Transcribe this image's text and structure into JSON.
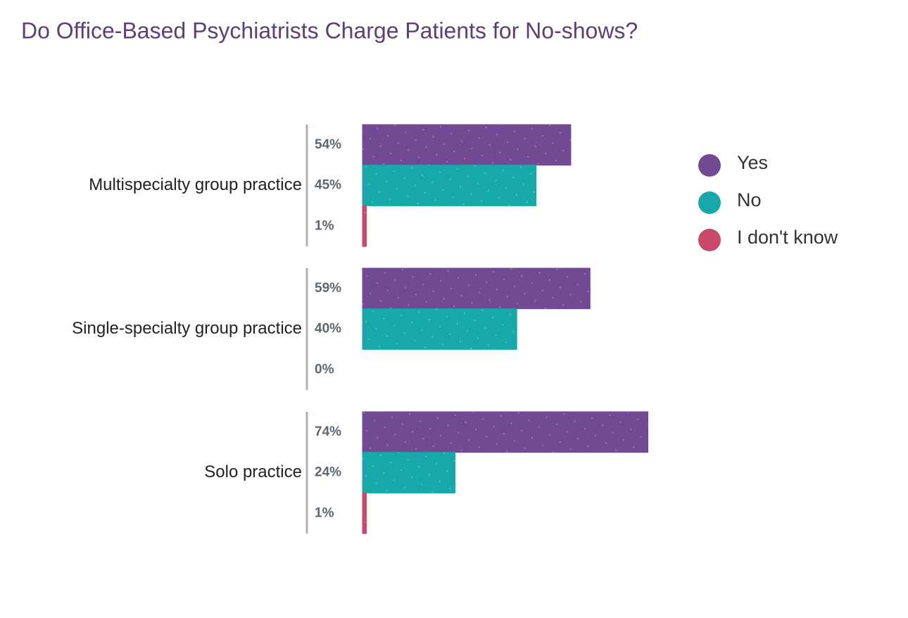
{
  "chart_data": {
    "type": "bar",
    "orientation": "horizontal",
    "title": "Do Office-Based Psychiatrists Charge Patients for No-shows?",
    "categories": [
      "Multispecialty group practice",
      "Single-specialty group practice",
      "Solo practice"
    ],
    "series": [
      {
        "name": "Yes",
        "color": "#714a93",
        "values": [
          54,
          59,
          74
        ],
        "value_labels": [
          "54%",
          "59%",
          "74%"
        ]
      },
      {
        "name": "No",
        "color": "#17a9a9",
        "values": [
          45,
          40,
          24
        ],
        "value_labels": [
          "45%",
          "40%",
          "24%"
        ]
      },
      {
        "name": "I don't know",
        "color": "#c9496a",
        "values": [
          1,
          0,
          1
        ],
        "value_labels": [
          "1%",
          "0%",
          "1%"
        ]
      }
    ],
    "legend": "right"
  }
}
